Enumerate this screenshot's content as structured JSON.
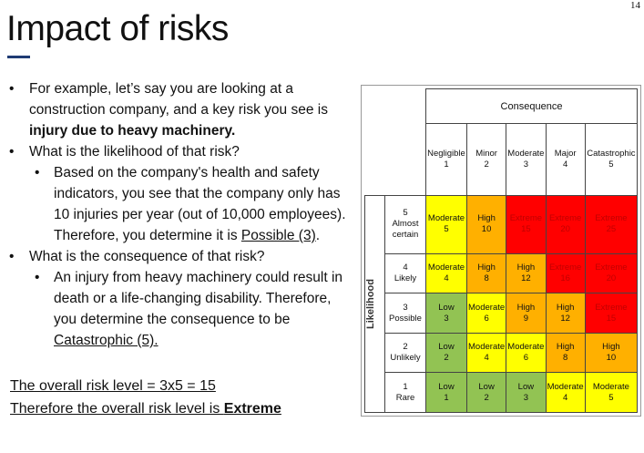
{
  "page_number": "14",
  "title": "Impact of risks",
  "bullets": {
    "b1_pre": "For example, let’s say you are looking at a construction company, and a key risk you see is ",
    "b1_bold": "injury due to heavy machinery.",
    "b2": "What is the likelihood of that risk?",
    "b2a_pre": "Based on the company's health and safety indicators, you see that the company only has 10 injuries per year (out of 10,000 employees). Therefore, you determine it is ",
    "b2a_u": "Possible (3)",
    "b2a_post": ".",
    "b3": "What is the consequence of that risk?",
    "b3a_pre": "An injury from heavy machinery could result in death or a life-changing disability. Therefore, you determine the consequence to be ",
    "b3a_u": "Catastrophic (5)."
  },
  "conclusion": {
    "line1": "The overall risk level = 3x5 = 15",
    "line2_pre": "Therefore the overall risk level is ",
    "line2_bold": "Extreme"
  },
  "matrix": {
    "consequence_label": "Consequence",
    "likelihood_label": "Likelihood",
    "columns": [
      [
        "Negligible",
        "1"
      ],
      [
        "Minor",
        "2"
      ],
      [
        "Moderate",
        "3"
      ],
      [
        "Major",
        "4"
      ],
      [
        "Catastrophic",
        "5"
      ]
    ],
    "rows": [
      {
        "n": "5",
        "label": "Almost certain",
        "cells": [
          [
            "Moderate",
            "5",
            2
          ],
          [
            "High",
            "10",
            3
          ],
          [
            "Extreme",
            "15",
            4
          ],
          [
            "Extreme",
            "20",
            4
          ],
          [
            "Extreme",
            "25",
            4
          ]
        ]
      },
      {
        "n": "4",
        "label": "Likely",
        "cells": [
          [
            "Moderate",
            "4",
            2
          ],
          [
            "High",
            "8",
            3
          ],
          [
            "High",
            "12",
            3
          ],
          [
            "Extreme",
            "16",
            4
          ],
          [
            "Extreme",
            "20",
            4
          ]
        ]
      },
      {
        "n": "3",
        "label": "Possible",
        "cells": [
          [
            "Low",
            "3",
            1
          ],
          [
            "Moderate",
            "6",
            2
          ],
          [
            "High",
            "9",
            3
          ],
          [
            "High",
            "12",
            3
          ],
          [
            "Extreme",
            "15",
            4
          ]
        ]
      },
      {
        "n": "2",
        "label": "Unlikely",
        "cells": [
          [
            "Low",
            "2",
            1
          ],
          [
            "Moderate",
            "4",
            2
          ],
          [
            "Moderate",
            "6",
            2
          ],
          [
            "High",
            "8",
            3
          ],
          [
            "High",
            "10",
            3
          ]
        ]
      },
      {
        "n": "1",
        "label": "Rare",
        "cells": [
          [
            "Low",
            "1",
            1
          ],
          [
            "Low",
            "2",
            1
          ],
          [
            "Low",
            "3",
            1
          ],
          [
            "Moderate",
            "4",
            2
          ],
          [
            "Moderate",
            "5",
            2
          ]
        ]
      }
    ]
  }
}
